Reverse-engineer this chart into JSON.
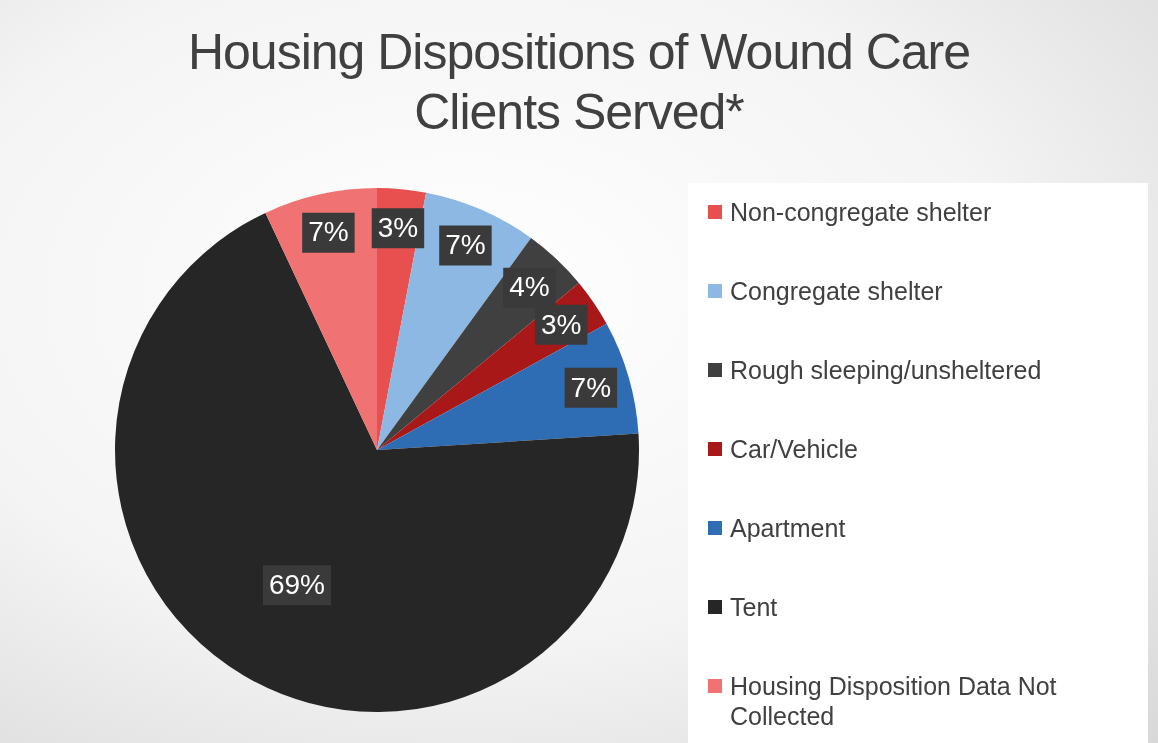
{
  "chart_data": {
    "type": "pie",
    "title": "Housing Dispositions of Wound Care Clients Served*",
    "categories": [
      "Non-congregate shelter",
      "Congregate shelter",
      "Rough sleeping/unsheltered",
      "Car/Vehicle",
      "Apartment",
      "Tent",
      "Housing Disposition Data Not Collected"
    ],
    "values": [
      3,
      7,
      4,
      3,
      7,
      69,
      7
    ],
    "colors": [
      "#e85050",
      "#8db8e4",
      "#404040",
      "#a81818",
      "#2e6db4",
      "#262626",
      "#f07272"
    ],
    "value_labels": [
      "3%",
      "7%",
      "4%",
      "3%",
      "7%",
      "69%",
      "7%"
    ],
    "legend": "right"
  }
}
